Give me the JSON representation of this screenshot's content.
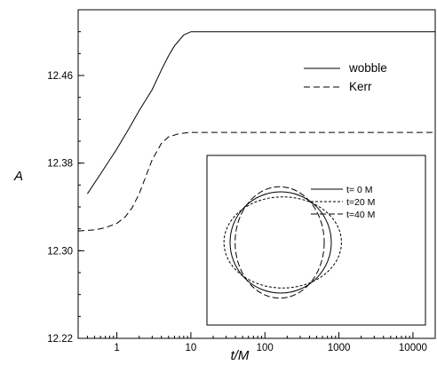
{
  "chart_data": [
    {
      "type": "line",
      "title": "",
      "xlabel": "t/M",
      "ylabel": "A",
      "x_scale": "log",
      "xlim": [
        0.3,
        20000
      ],
      "ylim": [
        12.22,
        12.52
      ],
      "x_ticks": [
        1,
        10,
        100,
        1000,
        10000
      ],
      "x_tick_labels": [
        "1",
        "10",
        "100",
        "1000",
        "10000"
      ],
      "y_ticks": [
        12.22,
        12.3,
        12.38,
        12.46
      ],
      "y_tick_labels": [
        "12.22",
        "12.30",
        "12.38",
        "12.46"
      ],
      "grid": false,
      "legend_position": "top-right",
      "series": [
        {
          "name": "wobble",
          "style": "solid",
          "x": [
            0.4,
            0.6,
            1,
            1.5,
            2,
            3,
            4,
            5,
            6,
            8,
            10,
            13,
            20,
            50,
            100,
            1000,
            10000,
            20000
          ],
          "y": [
            12.352,
            12.37,
            12.393,
            12.413,
            12.428,
            12.447,
            12.465,
            12.478,
            12.487,
            12.497,
            12.5,
            12.5,
            12.5,
            12.5,
            12.5,
            12.5,
            12.5,
            12.5
          ]
        },
        {
          "name": "Kerr",
          "style": "dashed",
          "x": [
            0.3,
            0.5,
            0.7,
            1,
            1.3,
            1.6,
            2,
            2.5,
            3,
            4,
            5,
            7,
            10,
            20,
            100,
            1000,
            10000,
            20000
          ],
          "y": [
            12.318,
            12.319,
            12.321,
            12.325,
            12.331,
            12.339,
            12.352,
            12.369,
            12.383,
            12.398,
            12.404,
            12.407,
            12.408,
            12.408,
            12.408,
            12.408,
            12.408,
            12.408
          ]
        }
      ]
    },
    {
      "type": "line",
      "title": "",
      "xlabel": "",
      "ylabel": "",
      "legend_position": "top-right",
      "series": [
        {
          "name": "t= 0 M",
          "style": "solid",
          "shape": "circle",
          "center": [
            0,
            0
          ],
          "radii": [
            1.0,
            1.0
          ]
        },
        {
          "name": "t=20 M",
          "style": "dotted-dash",
          "shape": "ellipse",
          "center": [
            0.04,
            0
          ],
          "radii": [
            1.16,
            0.9
          ]
        },
        {
          "name": "t=40 M",
          "style": "long-dash",
          "shape": "ellipse",
          "center": [
            -0.02,
            0.0
          ],
          "radii": [
            0.88,
            1.1
          ]
        }
      ]
    }
  ]
}
